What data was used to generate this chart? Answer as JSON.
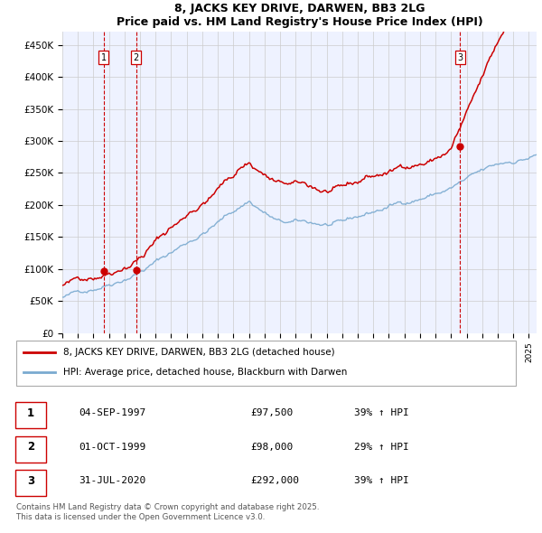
{
  "title": "8, JACKS KEY DRIVE, DARWEN, BB3 2LG",
  "subtitle": "Price paid vs. HM Land Registry's House Price Index (HPI)",
  "ylim": [
    0,
    470000
  ],
  "yticks": [
    0,
    50000,
    100000,
    150000,
    200000,
    250000,
    300000,
    350000,
    400000,
    450000
  ],
  "ytick_labels": [
    "£0",
    "£50K",
    "£100K",
    "£150K",
    "£200K",
    "£250K",
    "£300K",
    "£350K",
    "£400K",
    "£450K"
  ],
  "trans_years": [
    1997.671,
    1999.747,
    2020.581
  ],
  "trans_prices": [
    97500,
    98000,
    292000
  ],
  "trans_labels": [
    "1",
    "2",
    "3"
  ],
  "legend_entries": [
    {
      "label": "8, JACKS KEY DRIVE, DARWEN, BB3 2LG (detached house)",
      "color": "#cc0000"
    },
    {
      "label": "HPI: Average price, detached house, Blackburn with Darwen",
      "color": "#7aaad0"
    }
  ],
  "table_entries": [
    {
      "num": "1",
      "date": "04-SEP-1997",
      "price": "£97,500",
      "pct": "39% ↑ HPI"
    },
    {
      "num": "2",
      "date": "01-OCT-1999",
      "price": "£98,000",
      "pct": "29% ↑ HPI"
    },
    {
      "num": "3",
      "date": "31-JUL-2020",
      "price": "£292,000",
      "pct": "39% ↑ HPI"
    }
  ],
  "footnote": "Contains HM Land Registry data © Crown copyright and database right 2025.\nThis data is licensed under the Open Government Licence v3.0.",
  "background_color": "#eef2ff",
  "grid_color": "#cccccc",
  "red_line_color": "#cc0000",
  "blue_line_color": "#7aaad0",
  "vline_color": "#cc0000",
  "xstart": 1995.0,
  "xend": 2025.5
}
